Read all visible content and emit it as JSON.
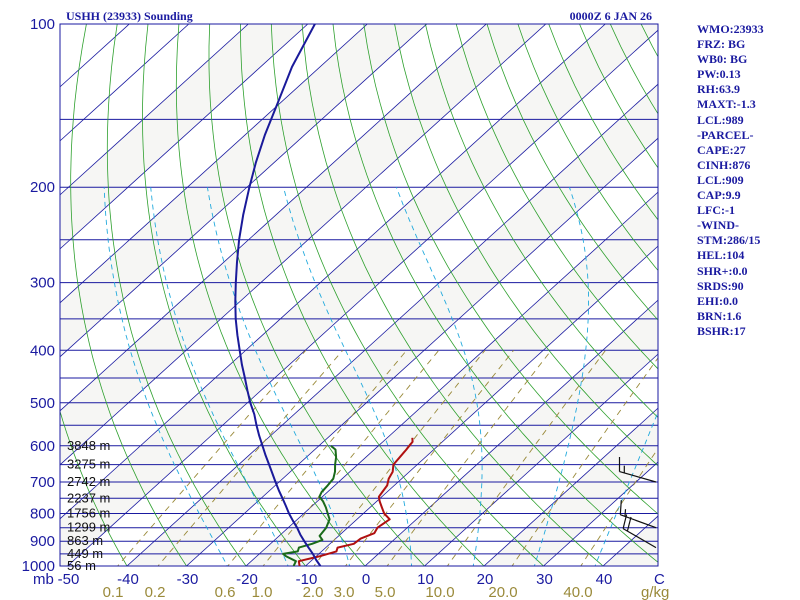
{
  "chart_data": {
    "type": "skew-t log-p sounding",
    "title": "USHH (23933) Sounding",
    "valid_time": "0000Z  6 JAN 26",
    "y_axis": {
      "unit": "mb",
      "scale": "log",
      "range": [
        1000,
        100
      ],
      "ticks": [
        100,
        200,
        300,
        400,
        500,
        600,
        700,
        800,
        900,
        1000
      ]
    },
    "x_axis": {
      "unit": "C",
      "skewed": true,
      "ticks": [
        -50,
        -40,
        -30,
        -20,
        -10,
        0,
        10,
        20,
        30,
        40
      ]
    },
    "mixing_ratio_axis": {
      "unit": "g/kg",
      "ticks": [
        "0.1",
        "0.2",
        "0.6",
        "1.0",
        "2.0",
        "3.0",
        "5.0",
        "10.0",
        "20.0",
        "40.0"
      ]
    },
    "height_labels": [
      {
        "text": "56 m",
        "p": 1000
      },
      {
        "text": "449 m",
        "p": 950
      },
      {
        "text": "863 m",
        "p": 900
      },
      {
        "text": "1299 m",
        "p": 850
      },
      {
        "text": "1756 m",
        "p": 800
      },
      {
        "text": "2237 m",
        "p": 750
      },
      {
        "text": "2742 m",
        "p": 700
      },
      {
        "text": "3275 m",
        "p": 650
      },
      {
        "text": "3848 m",
        "p": 600
      }
    ],
    "series": [
      {
        "color": "#b01010",
        "points": [
          [
            1000,
            -11
          ],
          [
            980,
            -12
          ],
          [
            960,
            -9.5
          ],
          [
            940,
            -7.5
          ],
          [
            925,
            -8
          ],
          [
            910,
            -6
          ],
          [
            890,
            -5.8
          ],
          [
            870,
            -4.5
          ],
          [
            850,
            -5
          ],
          [
            820,
            -4.5
          ],
          [
            800,
            -6.5
          ],
          [
            780,
            -8
          ],
          [
            760,
            -9.5
          ],
          [
            745,
            -10.5
          ],
          [
            730,
            -10.8
          ],
          [
            710,
            -11.2
          ],
          [
            690,
            -12.2
          ],
          [
            670,
            -12.8
          ],
          [
            650,
            -14
          ],
          [
            630,
            -14.3
          ],
          [
            610,
            -14.6
          ],
          [
            590,
            -15
          ],
          [
            580,
            -15.8
          ]
        ]
      },
      {
        "color": "#1a6a1a",
        "points": [
          [
            1000,
            -12
          ],
          [
            980,
            -12.5
          ],
          [
            960,
            -15
          ],
          [
            950,
            -16
          ],
          [
            940,
            -14
          ],
          [
            925,
            -14.5
          ],
          [
            910,
            -13
          ],
          [
            895,
            -12
          ],
          [
            880,
            -13.2
          ],
          [
            850,
            -13.6
          ],
          [
            820,
            -14.6
          ],
          [
            800,
            -16
          ],
          [
            780,
            -17.4
          ],
          [
            760,
            -19
          ],
          [
            745,
            -20.5
          ],
          [
            730,
            -21
          ],
          [
            710,
            -21.2
          ],
          [
            690,
            -21.5
          ],
          [
            670,
            -22.5
          ],
          [
            650,
            -23.8
          ],
          [
            630,
            -25
          ],
          [
            610,
            -26.5
          ],
          [
            600,
            -28
          ]
        ]
      },
      {
        "color": "#1a1a9a",
        "points": [
          [
            1000,
            -7.5
          ],
          [
            975,
            -9.3
          ],
          [
            950,
            -11
          ],
          [
            925,
            -12.9
          ],
          [
            900,
            -14.8
          ],
          [
            875,
            -16.7
          ],
          [
            850,
            -18.5
          ],
          [
            825,
            -20.5
          ],
          [
            800,
            -22.5
          ],
          [
            775,
            -24.4
          ],
          [
            750,
            -26.4
          ],
          [
            725,
            -28.5
          ],
          [
            700,
            -30.6
          ],
          [
            675,
            -32.7
          ],
          [
            650,
            -34.9
          ],
          [
            625,
            -37.2
          ],
          [
            600,
            -39.5
          ],
          [
            575,
            -41.9
          ],
          [
            550,
            -44.3
          ],
          [
            525,
            -46.7
          ],
          [
            500,
            -49.5
          ],
          [
            475,
            -52.2
          ],
          [
            450,
            -55
          ],
          [
            425,
            -58
          ],
          [
            400,
            -61
          ],
          [
            375,
            -64.2
          ],
          [
            350,
            -67.5
          ],
          [
            325,
            -70.8
          ],
          [
            300,
            -74.2
          ],
          [
            275,
            -77.8
          ],
          [
            250,
            -81.6
          ],
          [
            225,
            -85.5
          ],
          [
            200,
            -89.6
          ],
          [
            180,
            -93.1
          ],
          [
            160,
            -96.7
          ],
          [
            140,
            -100.4
          ],
          [
            120,
            -104.7
          ],
          [
            100,
            -108.8
          ]
        ]
      }
    ],
    "wind_barbs": [
      {
        "p": 700,
        "dir": 286,
        "speed_kt": 15
      },
      {
        "p": 850,
        "dir": 290,
        "speed_kt": 15
      },
      {
        "p": 925,
        "dir": 300,
        "speed_kt": 20
      }
    ],
    "colors": {
      "isobar": "#1a1aa0",
      "isotherm": "#1a1aa0",
      "dry_adiabat": "#2ea02e",
      "moist_adiabat": "#22aadd",
      "mixing_ratio": "#9a8a3a",
      "axis_text": "#1a1aa0"
    }
  },
  "side_panel": [
    "WMO:23933",
    "FRZ: BG",
    "WB0: BG",
    "PW:0.13",
    "RH:63.9",
    "MAXT:-1.3",
    "LCL:989",
    "-PARCEL-",
    "CAPE:27",
    "CINH:876",
    "LCL:909",
    "CAP:9.9",
    "LFC:-1",
    "-WIND-",
    "STM:286/15",
    "HEL:104",
    "SHR+:0.0",
    "SRDS:90",
    "EHI:0.0",
    "BRN:1.6",
    "BSHR:17"
  ]
}
